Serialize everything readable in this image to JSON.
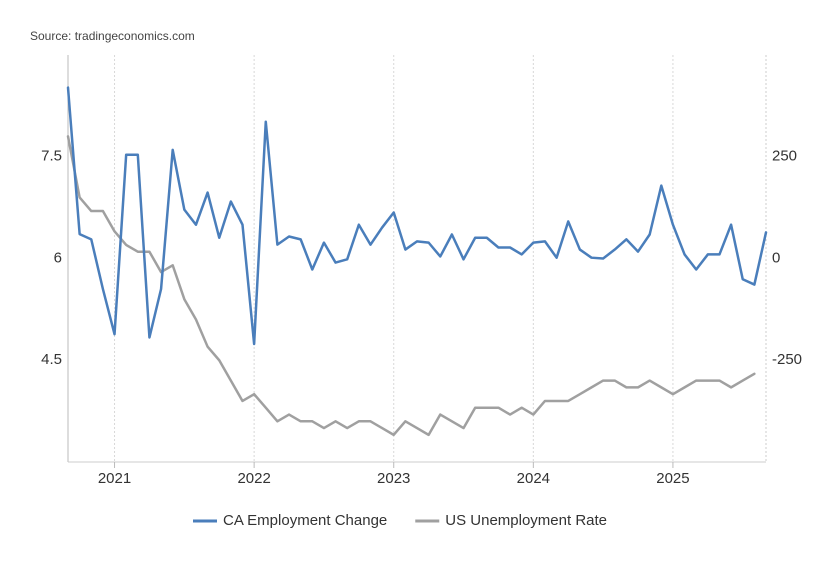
{
  "chart_data": {
    "type": "line",
    "source": "Source: tradingeconomics.com",
    "x": [
      "2020-09",
      "2020-10",
      "2020-11",
      "2020-12",
      "2021-01",
      "2021-02",
      "2021-03",
      "2021-04",
      "2021-05",
      "2021-06",
      "2021-07",
      "2021-08",
      "2021-09",
      "2021-10",
      "2021-11",
      "2021-12",
      "2022-01",
      "2022-02",
      "2022-03",
      "2022-04",
      "2022-05",
      "2022-06",
      "2022-07",
      "2022-08",
      "2022-09",
      "2022-10",
      "2022-11",
      "2022-12",
      "2023-01",
      "2023-02",
      "2023-03",
      "2023-04",
      "2023-05",
      "2023-06",
      "2023-07",
      "2023-08",
      "2023-09",
      "2023-10",
      "2023-11",
      "2023-12",
      "2024-01",
      "2024-02",
      "2024-03",
      "2024-04",
      "2024-05",
      "2024-06",
      "2024-07",
      "2024-08",
      "2024-09",
      "2024-10",
      "2024-11",
      "2024-12",
      "2025-01",
      "2025-02",
      "2025-03",
      "2025-04",
      "2025-05",
      "2025-06",
      "2025-07",
      "2025-08",
      "2025-09"
    ],
    "xlim": [
      "2020-09",
      "2025-09"
    ],
    "xticks": [
      2021,
      2022,
      2023,
      2024,
      2025
    ],
    "ylim": [
      3,
      9
    ],
    "yticks": [
      4.5,
      6,
      7.5
    ],
    "y2lim": [
      -500,
      500
    ],
    "y2ticks": [
      -250,
      0,
      250
    ],
    "grid": true,
    "legend": "bottom",
    "series": [
      {
        "name": "CA Employment Change",
        "color": "#4a7ebb",
        "axis": "y2",
        "values": [
          420,
          60,
          47,
          -75,
          -186,
          255,
          255,
          -194,
          -75,
          267,
          120,
          83,
          162,
          51,
          140,
          83,
          -210,
          336,
          34,
          54,
          47,
          -27,
          39,
          -10,
          -2,
          83,
          34,
          76,
          113,
          22,
          42,
          39,
          5,
          59,
          -2,
          51,
          51,
          27,
          27,
          10,
          39,
          42,
          2,
          91,
          22,
          2,
          0,
          22,
          47,
          17,
          59,
          179,
          83,
          10,
          -27,
          10,
          10,
          83,
          -51,
          -64,
          64
        ]
      },
      {
        "name": "US Unemployment Rate",
        "color": "#a0a0a0",
        "values": [
          7.8,
          6.9,
          6.7,
          6.7,
          6.4,
          6.2,
          6.1,
          6.1,
          5.8,
          5.9,
          5.4,
          5.1,
          4.7,
          4.5,
          4.2,
          3.9,
          4.0,
          3.8,
          3.6,
          3.7,
          3.6,
          3.6,
          3.5,
          3.6,
          3.5,
          3.6,
          3.6,
          3.5,
          3.4,
          3.6,
          3.5,
          3.4,
          3.7,
          3.6,
          3.5,
          3.8,
          3.8,
          3.8,
          3.7,
          3.8,
          3.7,
          3.9,
          3.9,
          3.9,
          4.0,
          4.1,
          4.2,
          4.2,
          4.1,
          4.1,
          4.2,
          4.1,
          4.0,
          4.1,
          4.2,
          4.2,
          4.2,
          4.1,
          4.2,
          4.3,
          null
        ]
      }
    ]
  }
}
